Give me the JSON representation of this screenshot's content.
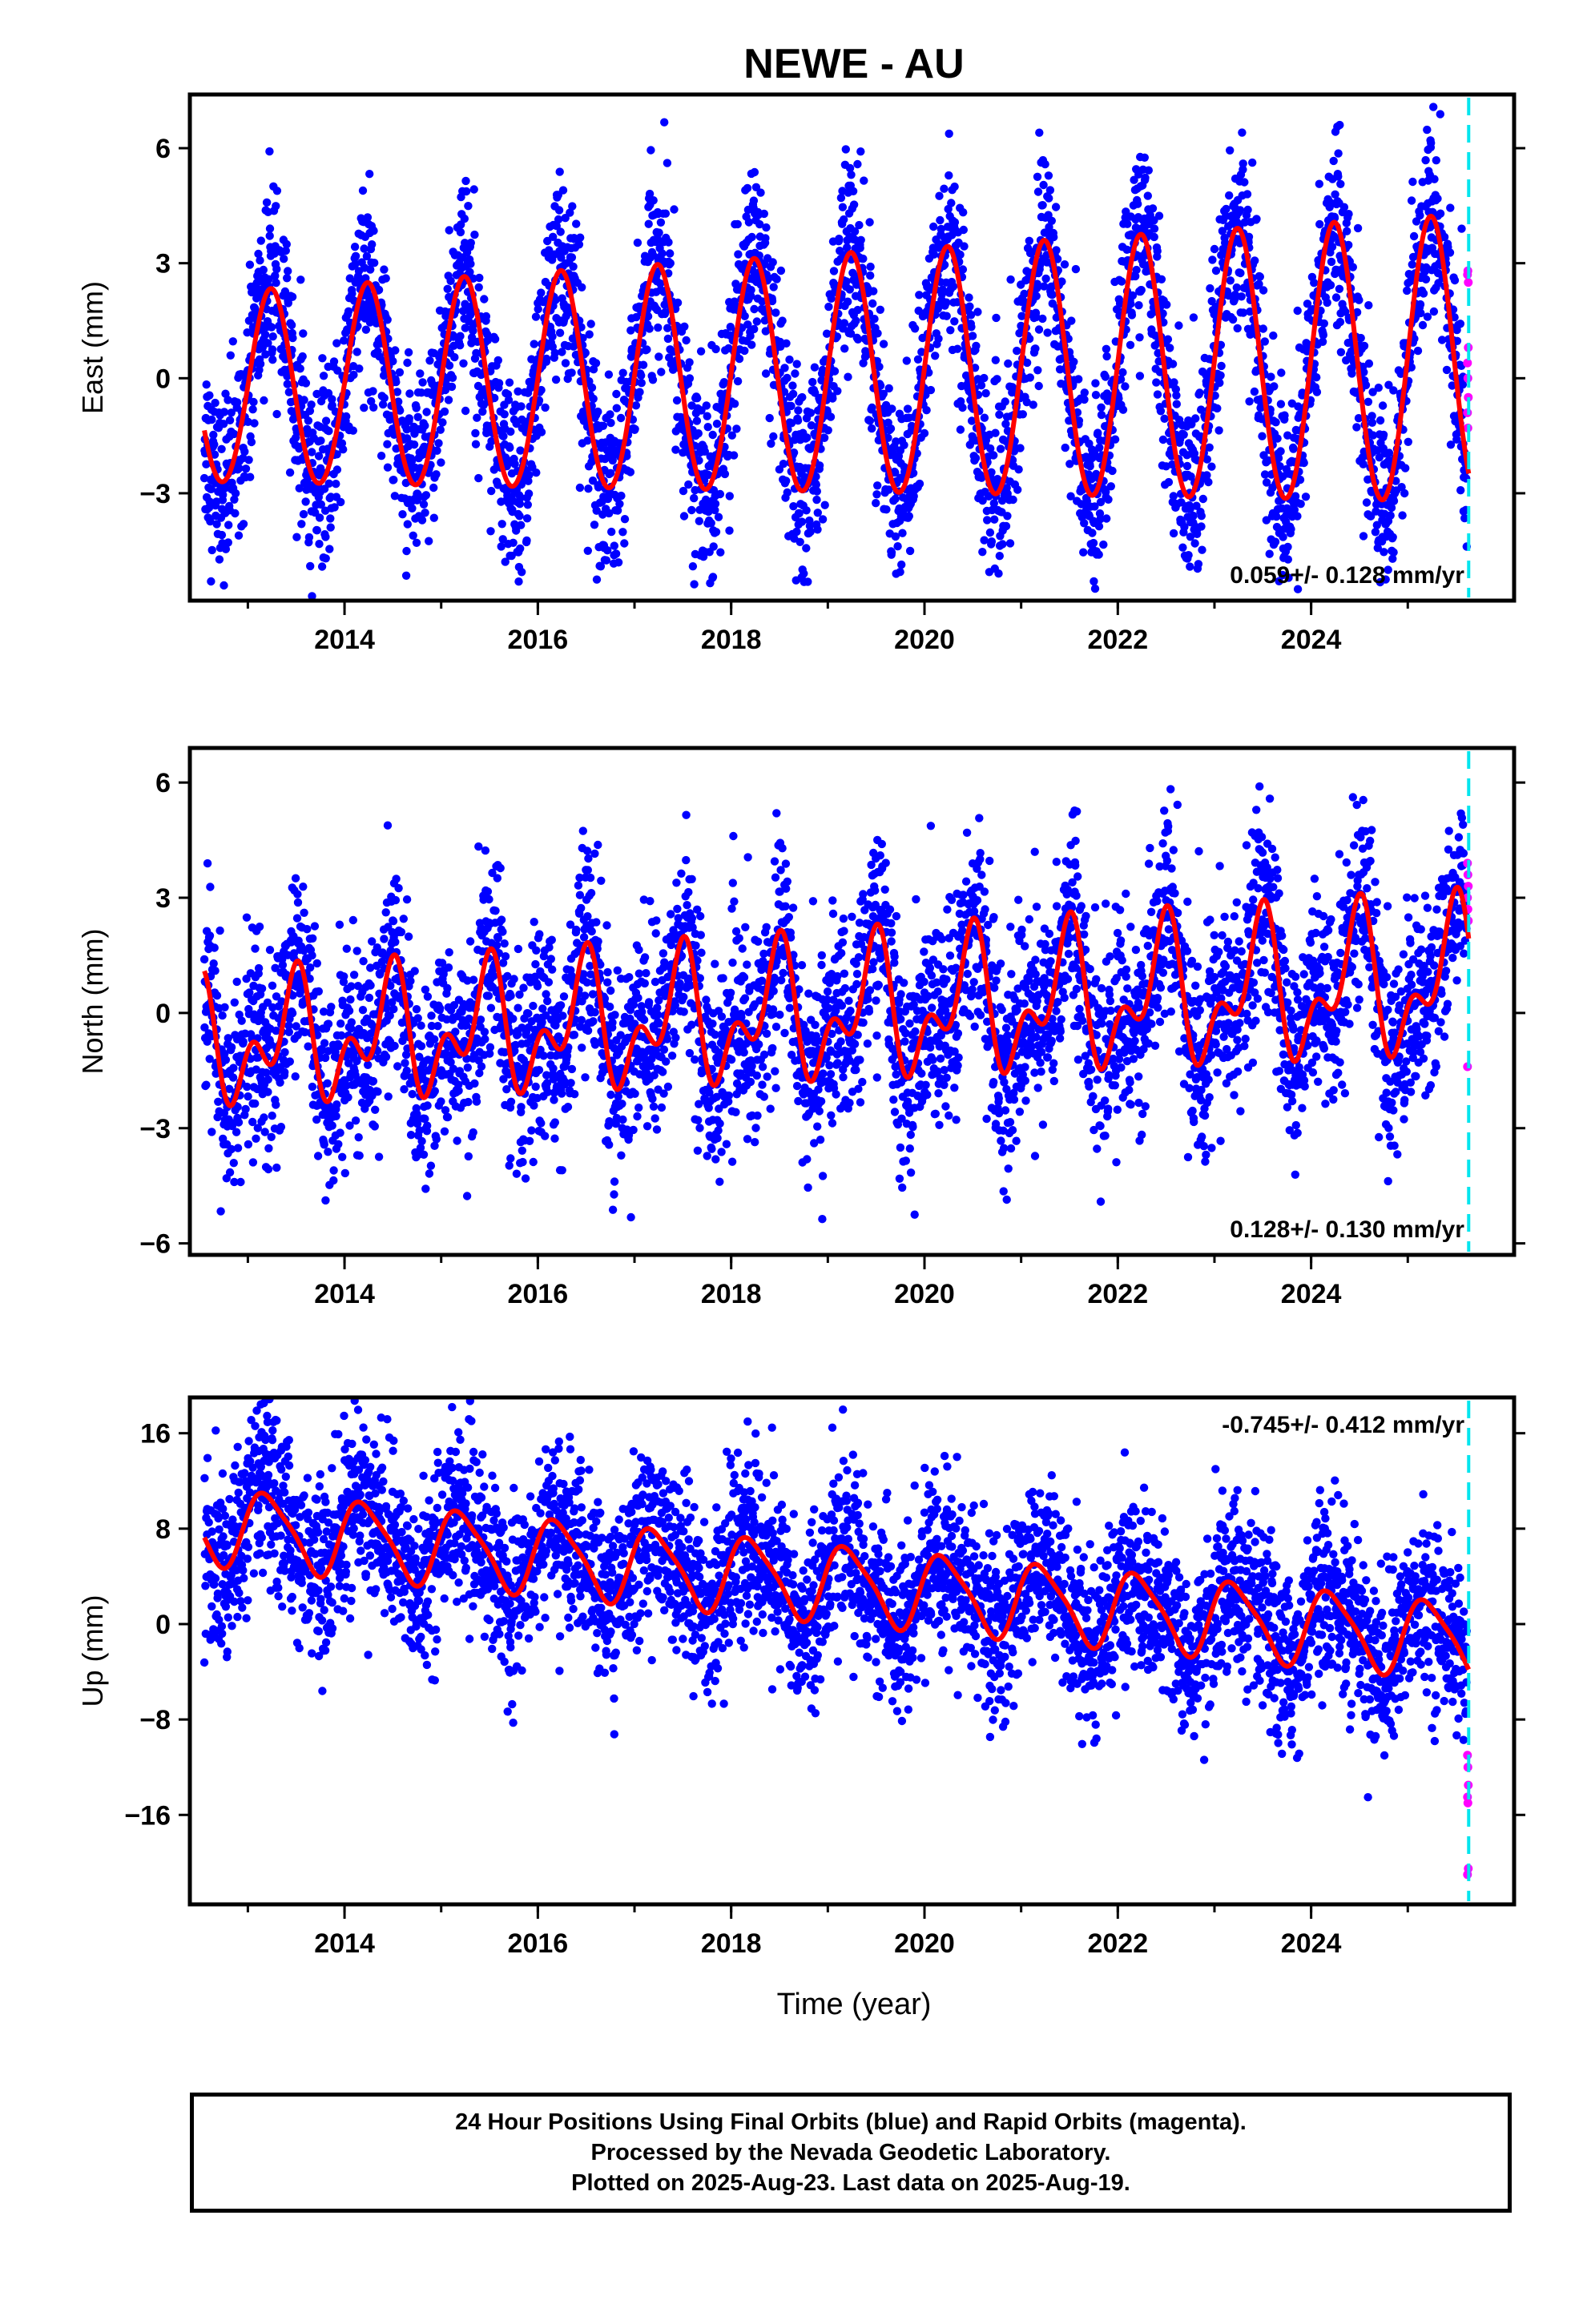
{
  "chart_data": {
    "type": "scatter",
    "title": "NEWE - AU",
    "xlabel": "Time (year)",
    "xlim": [
      2012.4,
      2026.1
    ],
    "x_ticks": [
      2014,
      2016,
      2018,
      2020,
      2022,
      2024
    ],
    "last_data_epoch": 2025.63,
    "colors": {
      "final": "#0000ff",
      "rapid": "#ff00ff",
      "model": "#ff0000",
      "marker": "#00e5ee"
    },
    "panels": [
      {
        "name": "east",
        "ylabel": "East (mm)",
        "ylim": [
          -5.8,
          7.4
        ],
        "y_ticks": [
          6,
          3,
          0,
          -3
        ],
        "y_tick_labels": [
          "6",
          "3",
          "0",
          "−3"
        ],
        "rate": "0.059+/- 0.128 mm/yr",
        "rate_position": "bottom-right",
        "model": {
          "offset": 0.05,
          "trend": 0.059,
          "annual_cos": 0.2,
          "annual_sin": 2.45,
          "semi_cos": -0.1,
          "semi_sin": 0.0,
          "amp_growth": 0.04
        },
        "scatter_sigma": 1.2,
        "rapid_values": [
          2.7,
          2.8,
          2.5,
          0.4,
          0.0,
          -0.5,
          -0.9,
          -1.3,
          0.8
        ]
      },
      {
        "name": "north",
        "ylabel": "North (mm)",
        "ylim": [
          -6.3,
          6.9
        ],
        "y_ticks": [
          6,
          3,
          0,
          -3,
          -6
        ],
        "y_tick_labels": [
          "6",
          "3",
          "0",
          "−3",
          "−6"
        ],
        "rate": "0.128+/- 0.130 mm/yr",
        "rate_position": "bottom-right",
        "model": {
          "offset": 0.0,
          "trend": 0.128,
          "annual_cos": -1.1,
          "annual_sin": 0.3,
          "semi_cos": 0.9,
          "semi_sin": 0.4,
          "amp_growth": 0.03
        },
        "scatter_sigma": 1.3,
        "rapid_values": [
          3.9,
          3.6,
          3.3,
          3.0,
          2.7,
          2.4,
          -1.4
        ]
      },
      {
        "name": "up",
        "ylabel": "Up (mm)",
        "ylim": [
          -23.5,
          19.0
        ],
        "y_ticks": [
          16,
          8,
          0,
          -8,
          -16
        ],
        "y_tick_labels": [
          "16",
          "8",
          "0",
          "−8",
          "−16"
        ],
        "rate": "-0.745+/- 0.412 mm/yr",
        "rate_position": "top-right",
        "model": {
          "offset": 3.5,
          "trend": -0.745,
          "annual_cos": 0.8,
          "annual_sin": 3.0,
          "semi_cos": 0.5,
          "semi_sin": 0.4,
          "amp_growth": 0.0
        },
        "scatter_sigma": 3.6,
        "rapid_values": [
          -11.0,
          -12.0,
          -13.5,
          -14.5,
          -15.0,
          -20.5,
          -21.0
        ]
      }
    ]
  },
  "footer": {
    "line1": "24 Hour Positions Using Final Orbits (blue) and Rapid Orbits (magenta).",
    "line2": "Processed by the Nevada Geodetic Laboratory.",
    "line3": "Plotted on 2025-Aug-23. Last data on 2025-Aug-19."
  }
}
